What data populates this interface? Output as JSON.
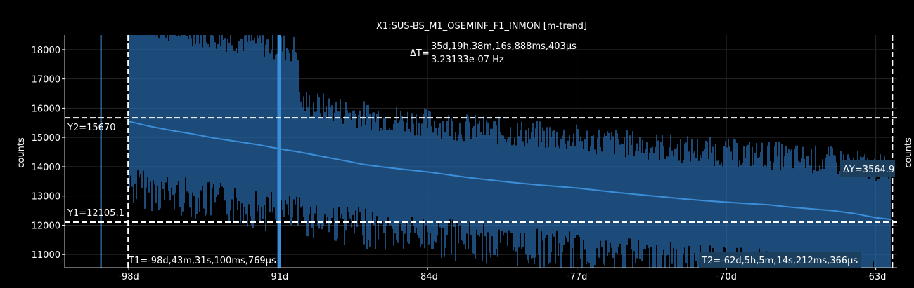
{
  "chart_data": {
    "type": "line",
    "title": "X1:SUS-BS_M1_OSEMINF_F1_INMON [m-trend]",
    "ylabel": "counts",
    "ylabel_right": "counts",
    "x_ticks": [
      {
        "value": -98,
        "label": "-98d"
      },
      {
        "value": -91,
        "label": "-91d"
      },
      {
        "value": -84,
        "label": "-84d"
      },
      {
        "value": -77,
        "label": "-77d"
      },
      {
        "value": -70,
        "label": "-70d"
      },
      {
        "value": -63,
        "label": "-63d"
      }
    ],
    "y_ticks": [
      11000,
      12000,
      13000,
      14000,
      15000,
      16000,
      17000,
      18000
    ],
    "xlim": [
      -101,
      -62
    ],
    "ylim": [
      10550,
      18500
    ],
    "grid": true,
    "series": [
      {
        "color": "#3b8fd9",
        "x": [
          -98.0,
          -97.0,
          -96.0,
          -95.0,
          -94.0,
          -93.0,
          -92.0,
          -91.0,
          -90.0,
          -89.0,
          -88.0,
          -87.0,
          -86.0,
          -85.0,
          -84.0,
          -83.0,
          -82.0,
          -81.0,
          -80.0,
          -79.0,
          -78.0,
          -77.0,
          -76.0,
          -75.0,
          -74.0,
          -73.0,
          -72.0,
          -71.0,
          -70.0,
          -69.0,
          -68.0,
          -67.0,
          -66.0,
          -65.0,
          -64.0,
          -63.0,
          -62.3
        ],
        "y": [
          15550,
          15380,
          15240,
          15120,
          14980,
          14870,
          14760,
          14620,
          14500,
          14360,
          14220,
          14080,
          13980,
          13900,
          13820,
          13720,
          13620,
          13540,
          13460,
          13390,
          13330,
          13270,
          13190,
          13110,
          13040,
          12970,
          12900,
          12840,
          12790,
          12740,
          12700,
          12620,
          12560,
          12500,
          12400,
          12260,
          12200
        ]
      }
    ],
    "cursors": {
      "x1_label": "T1=-98d,43m,31s,100ms,769µs",
      "x2_label": "T2=-62d,5h,5m,14s,212ms,366µs",
      "x1": -98.03,
      "x2": -62.22,
      "delta_t_prefix": "ΔT=",
      "delta_t": "35d,19h,38m,16s,888ms,403µs",
      "delta_f": "3.23133e-07 Hz",
      "y1_label": "Y1=12105.1",
      "y2_label": "Y2=15670",
      "y1": 12105.1,
      "y2": 15670,
      "delta_y": "ΔY=3564.9"
    },
    "colors": {
      "background": "#000000",
      "trace": "#3b8fd9",
      "cursor": "#ffffff",
      "axis": "#ffffff"
    }
  }
}
